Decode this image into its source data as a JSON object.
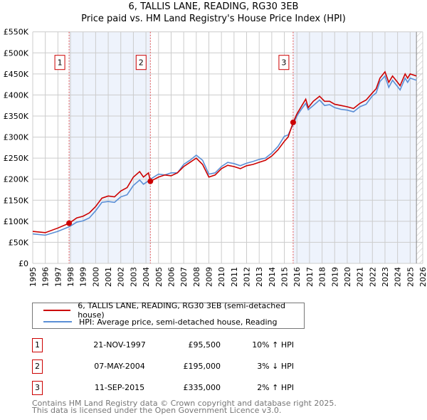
{
  "chart_data": {
    "type": "line",
    "title": "6, TALLIS LANE, READING, RG30 3EB",
    "subtitle": "Price paid vs. HM Land Registry's House Price Index (HPI)",
    "xlim": [
      1995,
      2026
    ],
    "ylim": [
      0,
      550000
    ],
    "x_ticks": [
      "1995",
      "1996",
      "1997",
      "1998",
      "1999",
      "2000",
      "2001",
      "2002",
      "2003",
      "2004",
      "2005",
      "2006",
      "2007",
      "2008",
      "2009",
      "2010",
      "2011",
      "2012",
      "2013",
      "2014",
      "2015",
      "2016",
      "2017",
      "2018",
      "2019",
      "2020",
      "2021",
      "2022",
      "2023",
      "2024",
      "2025",
      "2026"
    ],
    "y_ticks": [
      "£0",
      "£50K",
      "£100K",
      "£150K",
      "£200K",
      "£250K",
      "£300K",
      "£350K",
      "£400K",
      "£450K",
      "£500K",
      "£550K"
    ],
    "x": [
      1995,
      1996,
      1997,
      1997.9,
      1998.5,
      1999,
      1999.5,
      2000,
      2000.5,
      2001,
      2001.5,
      2002,
      2002.5,
      2003,
      2003.5,
      2003.8,
      2004.2,
      2004.35,
      2005,
      2005.5,
      2006,
      2006.5,
      2007,
      2007.5,
      2008,
      2008.5,
      2009,
      2009.5,
      2010,
      2010.5,
      2011,
      2011.5,
      2012,
      2012.5,
      2013,
      2013.5,
      2014,
      2014.5,
      2015,
      2015.3,
      2015.7,
      2016,
      2016.4,
      2016.7,
      2016.9,
      2017.3,
      2017.8,
      2018.2,
      2018.6,
      2019,
      2019.5,
      2020,
      2020.5,
      2021,
      2021.5,
      2022,
      2022.3,
      2022.6,
      2023,
      2023.3,
      2023.6,
      2024,
      2024.2,
      2024.6,
      2024.8,
      2025,
      2025.5
    ],
    "series": [
      {
        "name": "6, TALLIS LANE, READING, RG30 3EB (semi-detached house)",
        "color": "#cc0000",
        "values": [
          76,
          73,
          84,
          95.5,
          108,
          112,
          120,
          135,
          155,
          160,
          158,
          172,
          180,
          205,
          218,
          205,
          215,
          195,
          205,
          210,
          208,
          215,
          230,
          240,
          250,
          235,
          205,
          210,
          225,
          233,
          230,
          225,
          232,
          235,
          240,
          245,
          255,
          270,
          290,
          300,
          335,
          355,
          375,
          390,
          370,
          385,
          397,
          385,
          385,
          378,
          375,
          372,
          368,
          380,
          388,
          405,
          415,
          440,
          455,
          430,
          445,
          430,
          422,
          450,
          440,
          450,
          445
        ]
      },
      {
        "name": "HPI: Average price, semi-detached house, Reading",
        "color": "#5b8fd6",
        "values": [
          70,
          67,
          76,
          87,
          98,
          101,
          108,
          125,
          145,
          147,
          145,
          158,
          163,
          185,
          198,
          188,
          196,
          200,
          212,
          210,
          215,
          215,
          235,
          245,
          257,
          245,
          212,
          215,
          230,
          240,
          237,
          232,
          238,
          242,
          247,
          250,
          262,
          278,
          302,
          305,
          330,
          350,
          368,
          380,
          365,
          375,
          388,
          375,
          377,
          370,
          366,
          364,
          360,
          372,
          378,
          398,
          405,
          432,
          445,
          418,
          435,
          420,
          412,
          440,
          430,
          440,
          435
        ]
      }
    ],
    "value_unit": "thousand GBP",
    "sales": [
      {
        "label": "1",
        "x": 1997.89,
        "value": 95.5
      },
      {
        "label": "2",
        "x": 2004.35,
        "value": 195
      },
      {
        "label": "3",
        "x": 2015.7,
        "value": 335
      }
    ],
    "shaded_ranges": [
      [
        1997.89,
        2004.35
      ],
      [
        2015.7,
        2025.5
      ]
    ],
    "hatched_from": 2025.5,
    "legend_position": "below"
  },
  "table": [
    {
      "num": "1",
      "date": "21-NOV-1997",
      "price": "£95,500",
      "hpi": "10% ↑ HPI"
    },
    {
      "num": "2",
      "date": "07-MAY-2004",
      "price": "£195,000",
      "hpi": "3% ↓ HPI"
    },
    {
      "num": "3",
      "date": "11-SEP-2015",
      "price": "£335,000",
      "hpi": "2% ↑ HPI"
    }
  ],
  "footer": [
    "Contains HM Land Registry data © Crown copyright and database right 2025.",
    "This data is licensed under the Open Government Licence v3.0."
  ]
}
